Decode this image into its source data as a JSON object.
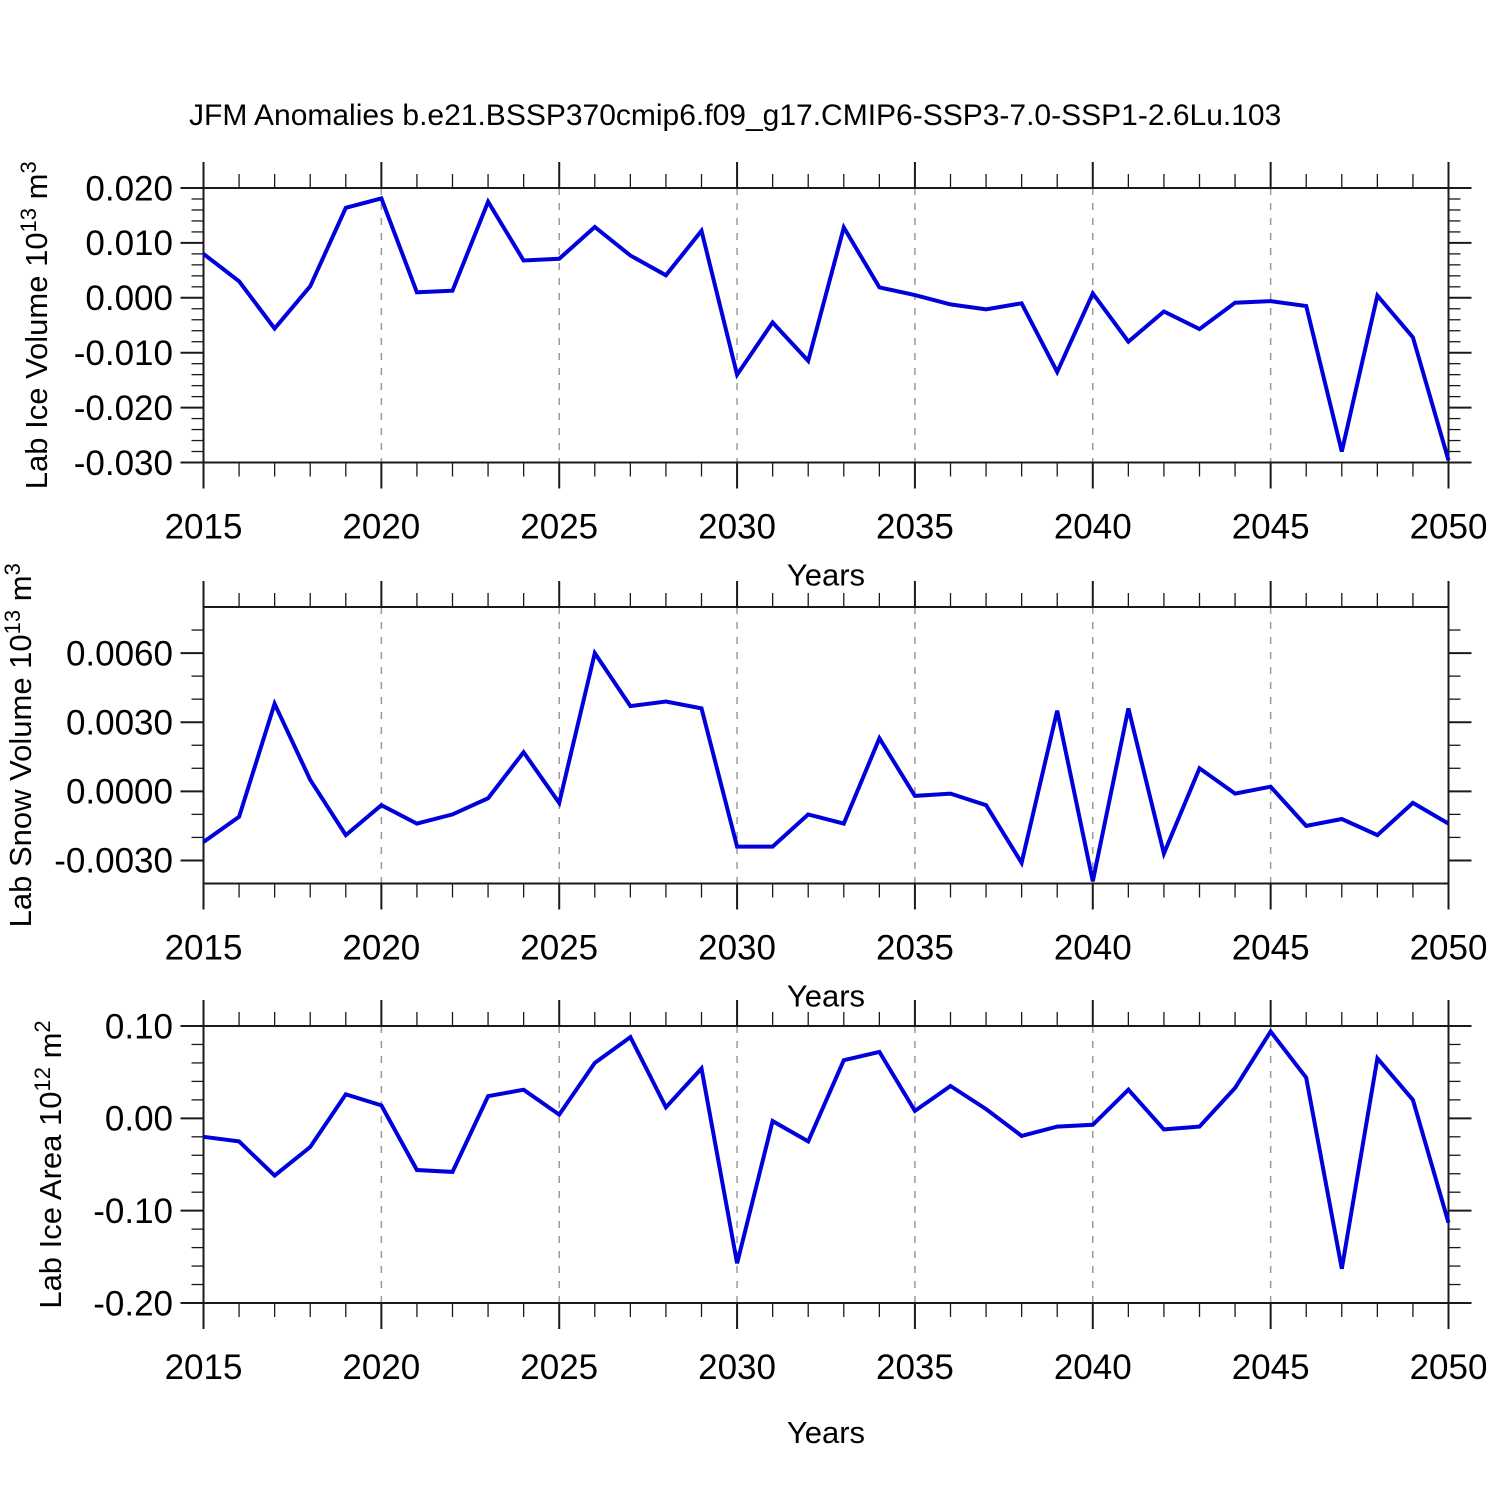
{
  "title": "JFM Anomalies b.e21.BSSP370cmip6.f09_g17.CMIP6-SSP3-7.0-SSP1-2.6Lu.103",
  "colors": {
    "line": "#0000dd",
    "grid": "#9a9a9a",
    "axis": "#1a1a1a"
  },
  "chart_data": [
    {
      "type": "line",
      "id": "ice-volume",
      "ylabel": "Lab Ice Volume 10¹³ m³",
      "ylabel_parts": [
        [
          "Lab Ice Volume 10",
          false
        ],
        [
          "13",
          true
        ],
        [
          " m",
          false
        ],
        [
          "3",
          true
        ]
      ],
      "xlabel": "Years",
      "x_start": 2015,
      "x_end": 2050,
      "x_major_ticks": [
        2015,
        2020,
        2025,
        2030,
        2035,
        2040,
        2045,
        2050
      ],
      "x_gridlines": [
        2020,
        2025,
        2030,
        2035,
        2040,
        2045
      ],
      "ylim": [
        -0.03,
        0.02
      ],
      "y_major_ticks": [
        0.02,
        0.01,
        0.0,
        -0.01,
        -0.02,
        -0.03
      ],
      "y_tick_labels": [
        "0.020",
        "0.010",
        "0.000",
        "-0.010",
        "-0.020",
        "-0.030"
      ],
      "y_minor_step": 0.002,
      "legend": "none",
      "grid": "vertical-dashed",
      "values": [
        0.008,
        0.003,
        -0.0056,
        0.0021,
        0.0164,
        0.0181,
        0.001,
        0.0013,
        0.0175,
        0.0068,
        0.0071,
        0.0129,
        0.0077,
        0.0041,
        0.0122,
        -0.014,
        -0.0045,
        -0.0115,
        0.0128,
        0.0019,
        0.0005,
        -0.0012,
        -0.0021,
        -0.001,
        -0.0135,
        0.0008,
        -0.008,
        -0.0025,
        -0.0057,
        -0.0009,
        -0.0006,
        -0.0015,
        -0.028,
        0.0004,
        -0.0072,
        -0.0296
      ]
    },
    {
      "type": "line",
      "id": "snow-volume",
      "ylabel": "Lab Snow Volume 10¹³ m³",
      "ylabel_parts": [
        [
          "Lab Snow Volume 10",
          false
        ],
        [
          "13",
          true
        ],
        [
          " m",
          false
        ],
        [
          "3",
          true
        ]
      ],
      "xlabel": "Years",
      "x_start": 2015,
      "x_end": 2050,
      "x_major_ticks": [
        2015,
        2020,
        2025,
        2030,
        2035,
        2040,
        2045,
        2050
      ],
      "x_gridlines": [
        2020,
        2025,
        2030,
        2035,
        2040,
        2045
      ],
      "ylim": [
        -0.004,
        0.008
      ],
      "y_major_ticks": [
        0.006,
        0.003,
        0.0,
        -0.003
      ],
      "y_tick_labels": [
        "0.0060",
        "0.0030",
        "0.0000",
        "-0.0030"
      ],
      "y_minor_step": 0.001,
      "legend": "none",
      "grid": "vertical-dashed",
      "values": [
        -0.0022,
        -0.0011,
        0.0038,
        0.0005,
        -0.0019,
        -0.0006,
        -0.0014,
        -0.001,
        -0.0003,
        0.0017,
        -0.0005,
        0.006,
        0.0037,
        0.0039,
        0.0036,
        -0.0024,
        -0.0024,
        -0.001,
        -0.0014,
        0.0023,
        -0.0002,
        -0.0001,
        -0.0006,
        -0.0031,
        0.0035,
        -0.0039,
        0.0036,
        -0.0027,
        0.001,
        -0.0001,
        0.0002,
        -0.0015,
        -0.0012,
        -0.0019,
        -0.0005,
        -0.0014
      ]
    },
    {
      "type": "line",
      "id": "ice-area",
      "ylabel": "Lab Ice Area 10¹² m²",
      "ylabel_parts": [
        [
          "Lab Ice Area 10",
          false
        ],
        [
          "12",
          true
        ],
        [
          " m",
          false
        ],
        [
          "2",
          true
        ]
      ],
      "xlabel": "Years",
      "x_start": 2015,
      "x_end": 2050,
      "x_major_ticks": [
        2015,
        2020,
        2025,
        2030,
        2035,
        2040,
        2045,
        2050
      ],
      "x_gridlines": [
        2020,
        2025,
        2030,
        2035,
        2040,
        2045
      ],
      "ylim": [
        -0.2,
        0.1
      ],
      "y_major_ticks": [
        0.1,
        0.0,
        -0.1,
        -0.2
      ],
      "y_tick_labels": [
        "0.10",
        "0.00",
        "-0.10",
        "-0.20"
      ],
      "y_minor_step": 0.02,
      "legend": "none",
      "grid": "vertical-dashed",
      "values": [
        -0.02,
        -0.025,
        -0.062,
        -0.031,
        0.026,
        0.014,
        -0.056,
        -0.058,
        0.024,
        0.031,
        0.004,
        0.06,
        0.088,
        0.012,
        0.054,
        -0.157,
        -0.003,
        -0.025,
        0.063,
        0.072,
        0.008,
        0.035,
        0.01,
        -0.019,
        -0.009,
        -0.007,
        0.031,
        -0.012,
        -0.009,
        0.033,
        0.094,
        0.044,
        -0.163,
        0.065,
        0.02,
        -0.113
      ]
    }
  ]
}
